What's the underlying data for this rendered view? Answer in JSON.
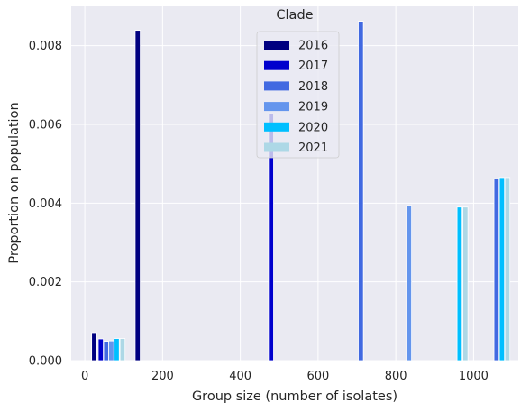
{
  "chart_data": {
    "type": "bar",
    "title": "Clade",
    "xlabel": "Group size (number of isolates)",
    "ylabel": "Proportion on population",
    "xlim": [
      -35,
      1115
    ],
    "ylim": [
      0,
      0.009
    ],
    "xticks": [
      0,
      200,
      400,
      600,
      800,
      1000
    ],
    "yticks": [
      0.0,
      0.002,
      0.004,
      0.006,
      0.008
    ],
    "ytick_labels": [
      "0.000",
      "0.002",
      "0.004",
      "0.006",
      "0.008"
    ],
    "grid": true,
    "legend_position": "top-center",
    "bar_width": 13,
    "series": [
      {
        "name": "2016",
        "color": "#000080",
        "points": [
          {
            "x": 24,
            "y": 0.00071
          },
          {
            "x": 136,
            "y": 0.00839
          }
        ]
      },
      {
        "name": "2017",
        "color": "#0000CD",
        "points": [
          {
            "x": 41,
            "y": 0.00055
          },
          {
            "x": 479,
            "y": 0.00627
          }
        ]
      },
      {
        "name": "2018",
        "color": "#4169E1",
        "points": [
          {
            "x": 55,
            "y": 0.00049
          },
          {
            "x": 710,
            "y": 0.00862
          },
          {
            "x": 1059,
            "y": 0.00462
          }
        ]
      },
      {
        "name": "2019",
        "color": "#6495ED",
        "points": [
          {
            "x": 68,
            "y": 0.0005
          },
          {
            "x": 834,
            "y": 0.00394
          }
        ]
      },
      {
        "name": "2020",
        "color": "#00BFFF",
        "points": [
          {
            "x": 82,
            "y": 0.00056
          },
          {
            "x": 964,
            "y": 0.0039
          },
          {
            "x": 1073,
            "y": 0.00465
          }
        ]
      },
      {
        "name": "2021",
        "color": "#ADD8E6",
        "points": [
          {
            "x": 97,
            "y": 0.00056
          },
          {
            "x": 979,
            "y": 0.0039
          },
          {
            "x": 1087,
            "y": 0.00465
          }
        ]
      }
    ]
  }
}
